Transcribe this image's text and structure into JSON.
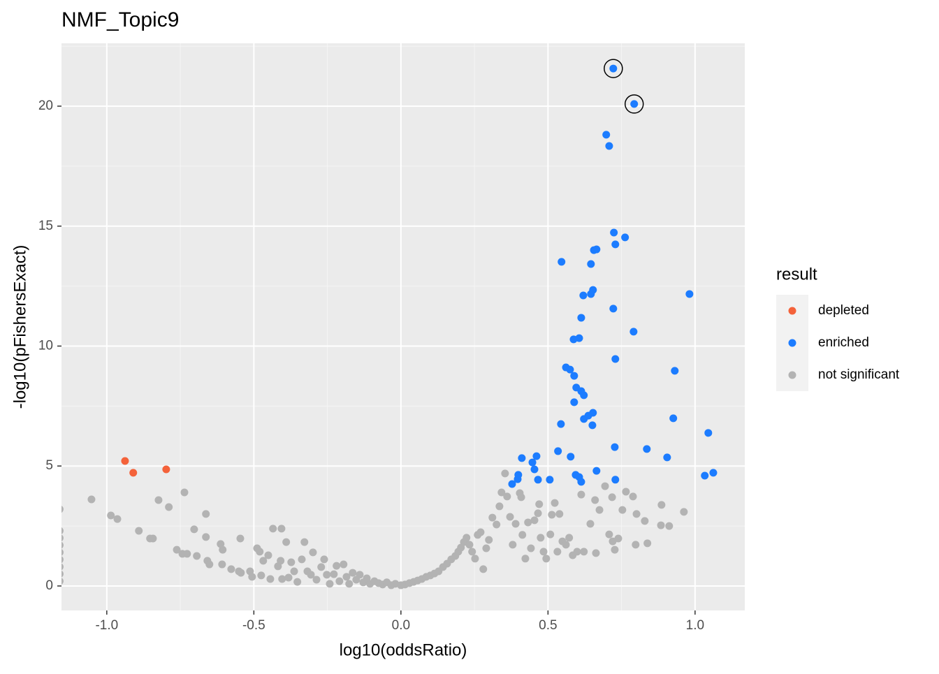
{
  "chart_data": {
    "type": "scatter",
    "title": "NMF_Topic9",
    "x_label": "log10(oddsRatio)",
    "y_label": "-log10(pFishersExact)",
    "legend_title": "result",
    "legend_position": "right",
    "grid": true,
    "xlim": [
      -1.154,
      1.169
    ],
    "ylim": [
      -1.02,
      22.62
    ],
    "xticks": [
      {
        "value": -1,
        "label": "-1.0"
      },
      -0.5,
      {
        "value": 0,
        "label": "0.0"
      },
      0.5,
      {
        "value": 1,
        "label": "1.0"
      }
    ],
    "yticks": [
      0,
      5,
      10,
      15,
      20
    ],
    "minor_xticks": [
      -0.75,
      -0.25,
      0.25,
      0.75
    ],
    "minor_yticks": [
      2.5,
      7.5,
      12.5,
      17.5,
      22.5
    ],
    "series": [
      {
        "name": "depleted",
        "color": "#f4623a",
        "x": [
          -0.938,
          -0.91,
          -0.798
        ],
        "values": [
          5.21,
          4.72,
          4.86
        ]
      },
      {
        "name": "enriched",
        "color": "#1c7cff",
        "circled": [
          0,
          1
        ],
        "x": [
          0.722,
          0.793,
          0.698,
          0.708,
          0.724,
          0.762,
          0.729,
          0.656,
          0.665,
          0.546,
          0.646,
          0.981,
          0.653,
          0.646,
          0.62,
          0.722,
          0.613,
          0.791,
          0.606,
          0.587,
          0.729,
          0.931,
          0.561,
          0.575,
          0.589,
          0.596,
          0.613,
          0.622,
          0.589,
          0.653,
          0.637,
          0.622,
          0.926,
          0.544,
          0.651,
          1.045,
          0.727,
          0.836,
          0.534,
          0.461,
          0.411,
          0.577,
          0.905,
          0.447,
          0.454,
          0.665,
          1.062,
          0.399,
          0.594,
          1.033,
          0.606,
          0.466,
          0.506,
          0.729,
          0.397,
          0.613,
          0.378
        ],
        "values": [
          21.57,
          20.09,
          18.81,
          18.34,
          14.73,
          14.53,
          14.24,
          14.0,
          14.03,
          13.51,
          13.42,
          12.17,
          12.34,
          12.17,
          12.11,
          11.56,
          11.18,
          10.6,
          10.33,
          10.28,
          9.46,
          8.97,
          9.11,
          9.02,
          8.76,
          8.27,
          8.12,
          7.95,
          7.66,
          7.22,
          7.1,
          6.96,
          6.99,
          6.75,
          6.7,
          6.38,
          5.79,
          5.71,
          5.62,
          5.41,
          5.33,
          5.39,
          5.36,
          5.15,
          4.86,
          4.8,
          4.72,
          4.63,
          4.63,
          4.6,
          4.54,
          4.43,
          4.43,
          4.43,
          4.45,
          4.34,
          4.25
        ]
      },
      {
        "name": "not significant",
        "color": "#b3b3b3",
        "x": [
          -1.16,
          -1.16,
          -1.16,
          -1.16,
          -1.16,
          -1.16,
          -1.16,
          -1.16,
          -1.16,
          -1.052,
          -0.986,
          -0.964,
          -0.891,
          -0.853,
          -0.843,
          -0.824,
          -0.789,
          -0.762,
          -0.743,
          -0.736,
          -0.727,
          -0.703,
          -0.694,
          -0.663,
          -0.663,
          -0.658,
          -0.651,
          -0.613,
          -0.608,
          -0.606,
          -0.577,
          -0.551,
          -0.546,
          -0.544,
          -0.513,
          -0.506,
          -0.489,
          -0.48,
          -0.475,
          -0.468,
          -0.451,
          -0.444,
          -0.435,
          -0.406,
          -0.418,
          -0.409,
          -0.404,
          -0.39,
          -0.382,
          -0.373,
          -0.363,
          -0.352,
          -0.337,
          -0.328,
          -0.318,
          -0.306,
          -0.299,
          -0.287,
          -0.271,
          -0.261,
          -0.252,
          -0.242,
          -0.228,
          -0.219,
          -0.209,
          -0.195,
          -0.185,
          -0.176,
          -0.164,
          -0.152,
          -0.14,
          -0.128,
          -0.116,
          -0.105,
          -0.09,
          -0.076,
          -0.062,
          -0.048,
          -0.033,
          -0.019,
          0.0,
          0.014,
          0.029,
          0.043,
          0.057,
          0.071,
          0.086,
          0.1,
          0.114,
          0.128,
          0.143,
          0.157,
          0.171,
          0.185,
          0.195,
          0.204,
          0.214,
          0.223,
          0.233,
          0.242,
          0.252,
          0.261,
          0.271,
          0.28,
          0.29,
          0.299,
          0.311,
          0.325,
          0.335,
          0.342,
          0.354,
          0.361,
          0.371,
          0.38,
          0.39,
          0.404,
          0.409,
          0.413,
          0.423,
          0.432,
          0.442,
          0.454,
          0.466,
          0.47,
          0.475,
          0.485,
          0.494,
          0.508,
          0.513,
          0.523,
          0.532,
          0.539,
          0.549,
          0.561,
          0.572,
          0.584,
          0.599,
          0.613,
          0.622,
          0.644,
          0.66,
          0.663,
          0.675,
          0.694,
          0.708,
          0.718,
          0.72,
          0.727,
          0.739,
          0.753,
          0.765,
          0.789,
          0.798,
          0.801,
          0.829,
          0.838,
          0.884,
          0.886,
          0.912,
          0.962
        ],
        "values": [
          3.2,
          2.3,
          2.0,
          1.7,
          1.4,
          1.1,
          0.8,
          0.5,
          0.2,
          3.61,
          2.94,
          2.79,
          2.3,
          1.98,
          1.98,
          3.58,
          3.29,
          1.51,
          1.34,
          3.9,
          1.34,
          2.36,
          1.25,
          3.0,
          2.04,
          1.05,
          0.9,
          1.75,
          0.9,
          1.51,
          0.7,
          0.61,
          1.98,
          0.55,
          0.61,
          0.38,
          1.57,
          1.43,
          0.44,
          1.05,
          1.28,
          0.29,
          2.39,
          2.39,
          0.82,
          1.05,
          0.29,
          1.83,
          0.35,
          0.99,
          0.61,
          0.17,
          1.11,
          1.83,
          0.61,
          0.47,
          1.4,
          0.26,
          0.79,
          1.11,
          0.47,
          0.09,
          0.49,
          0.84,
          0.2,
          0.9,
          0.38,
          0.09,
          0.55,
          0.26,
          0.47,
          0.15,
          0.32,
          0.09,
          0.2,
          0.12,
          0.06,
          0.15,
          0.03,
          0.09,
          0.03,
          0.06,
          0.12,
          0.17,
          0.23,
          0.29,
          0.38,
          0.44,
          0.52,
          0.61,
          0.79,
          0.93,
          1.11,
          1.25,
          1.43,
          1.6,
          1.83,
          2.01,
          1.72,
          1.43,
          1.14,
          2.13,
          2.24,
          0.7,
          1.57,
          1.92,
          2.85,
          2.56,
          3.32,
          3.9,
          4.69,
          3.73,
          2.88,
          1.72,
          2.59,
          3.87,
          3.7,
          2.13,
          1.14,
          2.65,
          1.57,
          2.74,
          3.03,
          3.41,
          2.01,
          1.43,
          1.14,
          2.15,
          2.97,
          3.46,
          1.43,
          3.0,
          1.86,
          1.72,
          2.01,
          1.28,
          1.43,
          3.81,
          1.43,
          2.59,
          3.58,
          1.37,
          3.17,
          4.16,
          2.15,
          3.7,
          1.86,
          1.51,
          1.98,
          3.17,
          3.93,
          3.73,
          1.72,
          3.0,
          2.71,
          1.78,
          2.53,
          3.38,
          2.5,
          3.09
        ]
      }
    ]
  }
}
